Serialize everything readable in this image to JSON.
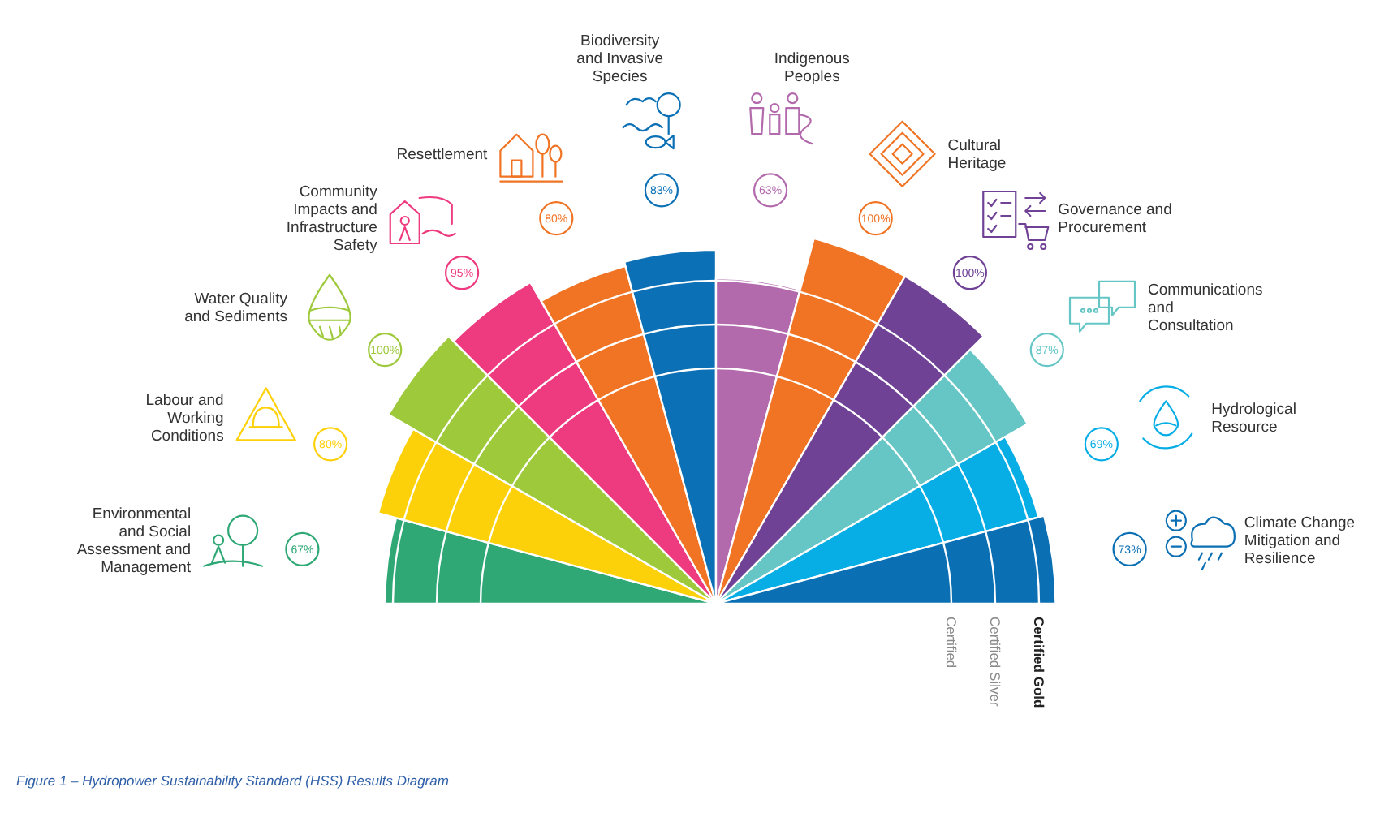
{
  "chart_data": {
    "type": "other",
    "categories": [
      "Environmental and Social Assessment and Management",
      "Labour and Working Conditions",
      "Water Quality and Sediments",
      "Community Impacts and Infrastructure Safety",
      "Resettlement",
      "Biodiversity and Invasive Species",
      "Indigenous Peoples",
      "Cultural Heritage",
      "Governance and Procurement",
      "Communications and Consultation",
      "Hydrological Resource",
      "Climate Change Mitigation and Resilience"
    ],
    "values": [
      67,
      80,
      100,
      95,
      80,
      83,
      63,
      100,
      100,
      87,
      69,
      73
    ],
    "value_labels": [
      "67%",
      "80%",
      "100%",
      "95%",
      "80%",
      "83%",
      "63%",
      "100%",
      "100%",
      "87%",
      "69%",
      "73%"
    ],
    "colors": [
      "#2fa876",
      "#fdd10a",
      "#9dc93b",
      "#ee3a7f",
      "#f07424",
      "#0b70b5",
      "#b26aad",
      "#f07424",
      "#6f4296",
      "#66c6c6",
      "#07aee6",
      "#0b6fb3"
    ],
    "annotations": [
      "Certified",
      "Certified Silver",
      "Certified Gold",
      "Figure 1 – Hydropower Sustainability Standard (HSS) Results Diagram"
    ]
  }
}
